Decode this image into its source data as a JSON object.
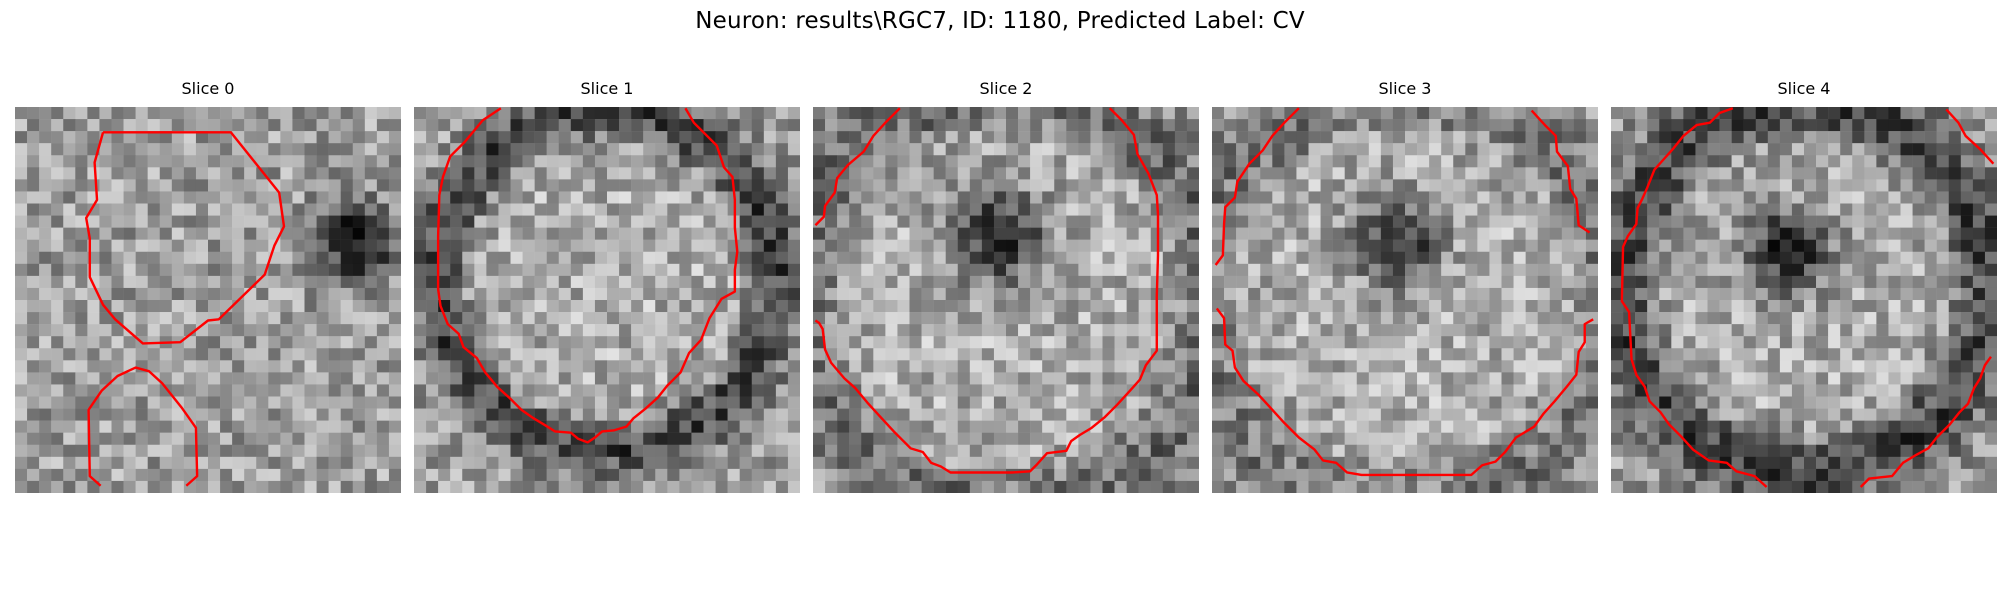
{
  "figure": {
    "title": "Neuron: results\\RGC7, ID: 1180, Predicted Label: CV",
    "contour_color": "#ff0000"
  },
  "slices": [
    {
      "title": "Slice 0",
      "seed": 11,
      "dark_blobs": [
        [
          0.88,
          0.35,
          0.1,
          0.55
        ]
      ],
      "ring": null
    },
    {
      "title": "Slice 1",
      "seed": 23,
      "dark_blobs": [],
      "ring": [
        0.5,
        0.45,
        0.44,
        0.07,
        0.35
      ]
    },
    {
      "title": "Slice 2",
      "seed": 37,
      "dark_blobs": [
        [
          0.48,
          0.33,
          0.12,
          0.55
        ]
      ],
      "ring": [
        0.5,
        0.5,
        0.55,
        0.1,
        0.2
      ]
    },
    {
      "title": "Slice 3",
      "seed": 51,
      "dark_blobs": [
        [
          0.48,
          0.35,
          0.11,
          0.5
        ]
      ],
      "ring": [
        0.5,
        0.5,
        0.55,
        0.1,
        0.15
      ]
    },
    {
      "title": "Slice 4",
      "seed": 67,
      "dark_blobs": [
        [
          0.46,
          0.37,
          0.11,
          0.55
        ]
      ],
      "ring": [
        0.5,
        0.47,
        0.48,
        0.09,
        0.35
      ]
    }
  ]
}
